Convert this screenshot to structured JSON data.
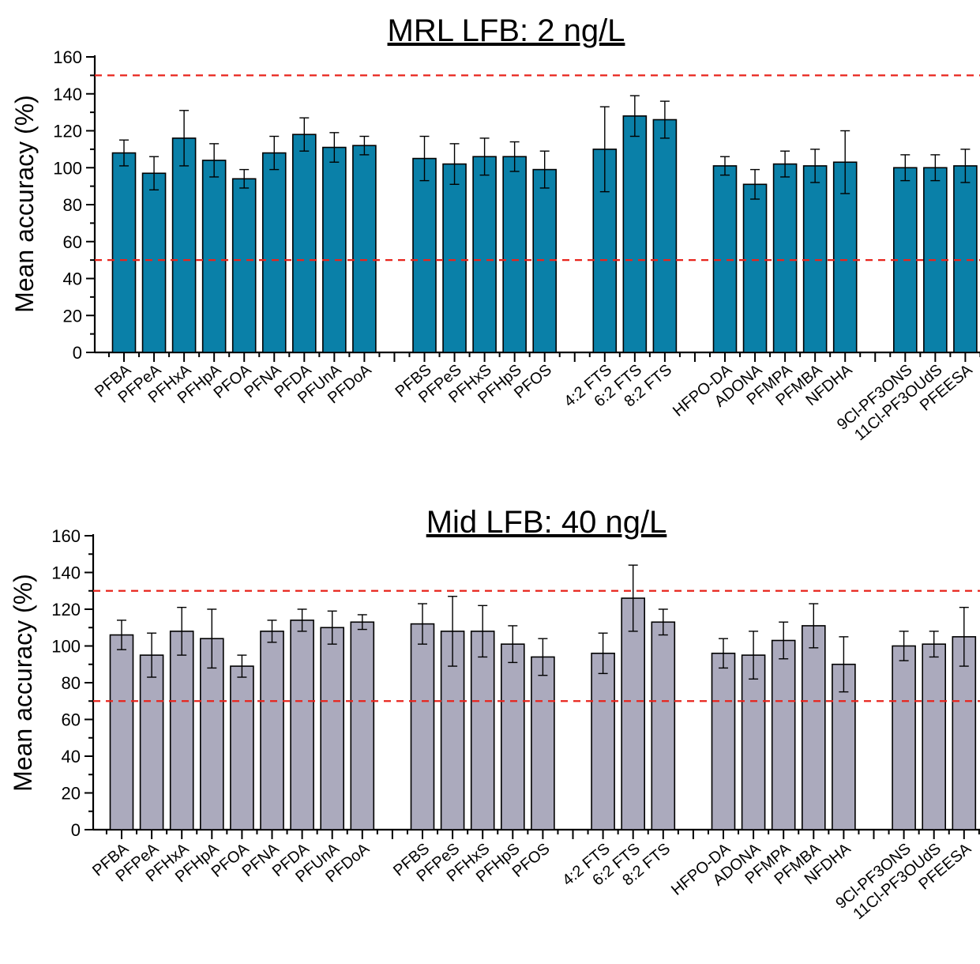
{
  "chart_data": [
    {
      "type": "bar",
      "title": "MRL LFB: 2 ng/L",
      "ylabel": "Mean accuracy (%)",
      "xlabel": "",
      "ylim": [
        0,
        160
      ],
      "yticks": [
        "0",
        "20",
        "40",
        "60",
        "80",
        "100",
        "120",
        "140",
        "160"
      ],
      "bar_color": "#0a80a8",
      "reference_line_color": "#e8241c",
      "reference_lines": [
        50,
        150
      ],
      "groups": [
        {
          "categories": [
            "PFBA",
            "PFPeA",
            "PFHxA",
            "PFHpA",
            "PFOA",
            "PFNA",
            "PFDA",
            "PFUnA",
            "PFDoA"
          ],
          "values": [
            108,
            97,
            116,
            104,
            94,
            108,
            118,
            111,
            112
          ],
          "errors": [
            7,
            9,
            15,
            9,
            5,
            9,
            9,
            8,
            5
          ]
        },
        {
          "categories": [
            "PFBS",
            "PFPeS",
            "PFHxS",
            "PFHpS",
            "PFOS"
          ],
          "values": [
            105,
            102,
            106,
            106,
            99
          ],
          "errors": [
            12,
            11,
            10,
            8,
            10
          ]
        },
        {
          "categories": [
            "4:2 FTS",
            "6:2 FTS",
            "8:2 FTS"
          ],
          "values": [
            110,
            128,
            126
          ],
          "errors": [
            23,
            11,
            10
          ]
        },
        {
          "categories": [
            "HFPO-DA",
            "ADONA",
            "PFMPA",
            "PFMBA",
            "NFDHA"
          ],
          "values": [
            101,
            91,
            102,
            101,
            103
          ],
          "errors": [
            5,
            8,
            7,
            9,
            17
          ]
        },
        {
          "categories": [
            "9Cl-PF3ONS",
            "11Cl-PF3OUdS",
            "PFEESA"
          ],
          "values": [
            100,
            100,
            101
          ],
          "errors": [
            7,
            7,
            9
          ]
        }
      ]
    },
    {
      "type": "bar",
      "title": "Mid LFB: 40 ng/L",
      "ylabel": "Mean accuracy (%)",
      "xlabel": "",
      "ylim": [
        0,
        160
      ],
      "yticks": [
        "0",
        "20",
        "40",
        "60",
        "80",
        "100",
        "120",
        "140",
        "160"
      ],
      "bar_color": "#abaabd",
      "reference_line_color": "#e8241c",
      "reference_lines": [
        70,
        130
      ],
      "groups": [
        {
          "categories": [
            "PFBA",
            "PFPeA",
            "PFHxA",
            "PFHpA",
            "PFOA",
            "PFNA",
            "PFDA",
            "PFUnA",
            "PFDoA"
          ],
          "values": [
            106,
            95,
            108,
            104,
            89,
            108,
            114,
            110,
            113
          ],
          "errors": [
            8,
            12,
            13,
            16,
            6,
            6,
            6,
            9,
            4
          ]
        },
        {
          "categories": [
            "PFBS",
            "PFPeS",
            "PFHxS",
            "PFHpS",
            "PFOS"
          ],
          "values": [
            112,
            108,
            108,
            101,
            94
          ],
          "errors": [
            11,
            19,
            14,
            10,
            10
          ]
        },
        {
          "categories": [
            "4:2 FTS",
            "6:2 FTS",
            "8:2 FTS"
          ],
          "values": [
            96,
            126,
            113
          ],
          "errors": [
            11,
            18,
            7
          ]
        },
        {
          "categories": [
            "HFPO-DA",
            "ADONA",
            "PFMPA",
            "PFMBA",
            "NFDHA"
          ],
          "values": [
            96,
            95,
            103,
            111,
            90
          ],
          "errors": [
            8,
            13,
            10,
            12,
            15
          ]
        },
        {
          "categories": [
            "9Cl-PF3ONS",
            "11Cl-PF3OUdS",
            "PFEESA"
          ],
          "values": [
            100,
            101,
            105
          ],
          "errors": [
            8,
            7,
            16
          ]
        }
      ]
    }
  ]
}
